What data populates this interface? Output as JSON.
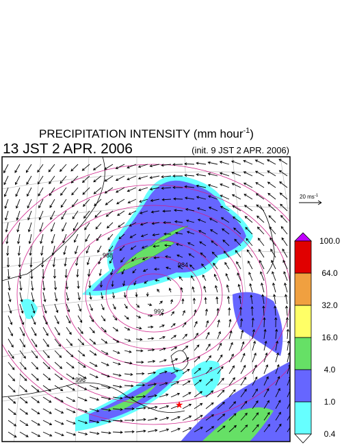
{
  "header": {
    "title": {
      "text": "PRECIPITATION INTENSITY (mm hour",
      "superscript": "-1",
      "close": ")"
    },
    "time": "13 JST 2 APR. 2006",
    "init": "(init. 9 JST 2 APR. 2006)"
  },
  "wind_reference": {
    "text": "20 ms",
    "superscript": "-1"
  },
  "legend": {
    "labels": [
      "100.0",
      "64.0",
      "32.0",
      "16.0",
      "4.0",
      "1.0",
      "0.4"
    ],
    "colors": [
      "#e00000",
      "#f0a040",
      "#ffff66",
      "#66e066",
      "#6666ff",
      "#66ffff"
    ],
    "over_color": "#c000ff"
  },
  "contours": {
    "labels": [
      "988",
      "984",
      "992",
      "996"
    ]
  }
}
